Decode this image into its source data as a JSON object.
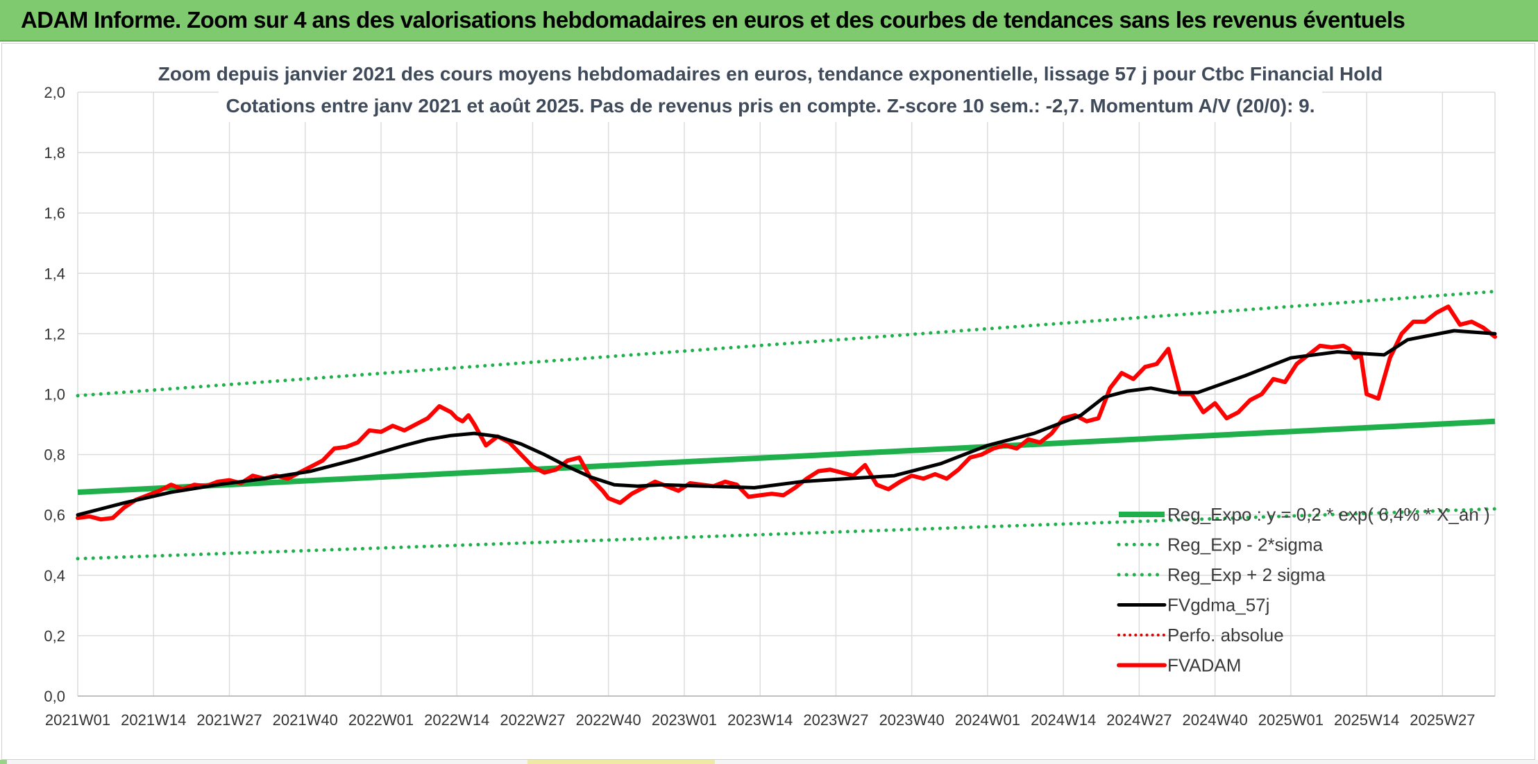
{
  "header": {
    "banner": "ADAM Informe. Zoom sur 4 ans des valorisations hebdomadaires en euros et des courbes de tendances sans les revenus éventuels"
  },
  "chart_data": {
    "type": "line",
    "title_line1": "Zoom depuis janvier 2021 des cours moyens hebdomadaires en euros, tendance exponentielle, lissage 57 j pour Ctbc Financial Hold",
    "title_line2": "Cotations entre janv 2021 et août 2025. Pas de revenus pris en compte. Z-score 10 sem.: -2,7. Momentum A/V (20/0): 9.",
    "ylim": [
      0,
      2
    ],
    "yticks": [
      0,
      0.2,
      0.4,
      0.6,
      0.8,
      1.0,
      1.2,
      1.4,
      1.6,
      1.8,
      2.0
    ],
    "ytick_labels": [
      "0,0",
      "0,2",
      "0,4",
      "0,6",
      "0,8",
      "1,0",
      "1,2",
      "1,4",
      "1,6",
      "1,8",
      "2,0"
    ],
    "x_range_weeks": [
      0,
      243
    ],
    "xtick_positions": [
      0,
      13,
      26,
      39,
      52,
      65,
      78,
      91,
      104,
      117,
      130,
      143,
      156,
      169,
      182,
      195,
      208,
      221,
      234
    ],
    "xtick_labels": [
      "2021W01",
      "2021W14",
      "2021W27",
      "2021W40",
      "2022W01",
      "2022W14",
      "2022W27",
      "2022W40",
      "2023W01",
      "2023W14",
      "2023W27",
      "2023W40",
      "2024W01",
      "2024W14",
      "2024W27",
      "2024W40",
      "2025W01",
      "2025W14",
      "2025W27"
    ],
    "grid": true,
    "legend_position": "bottom-right",
    "colors": {
      "reg_expo": "#1fb04b",
      "sigma": "#1fb04b",
      "fvgdma": "#000000",
      "perfo": "#e00000",
      "fvadam": "#ff0000",
      "grid": "#dcdcdc"
    },
    "series": [
      {
        "name": "Reg_Expo : y = 0,2 * exp( 6,4% * X_an )",
        "style": "solid-thick",
        "x": [
          0,
          243
        ],
        "values": [
          0.675,
          0.91
        ]
      },
      {
        "name": "Reg_Exp - 2*sigma",
        "style": "dotted",
        "x": [
          0,
          243
        ],
        "values": [
          0.455,
          0.62
        ]
      },
      {
        "name": "Reg_Exp + 2 sigma",
        "style": "dotted",
        "x": [
          0,
          243
        ],
        "values": [
          0.995,
          1.34
        ]
      },
      {
        "name": "FVgdma_57j",
        "style": "solid",
        "x": [
          0,
          8,
          16,
          24,
          32,
          40,
          48,
          56,
          60,
          64,
          68,
          72,
          76,
          80,
          84,
          88,
          92,
          96,
          100,
          108,
          116,
          124,
          132,
          140,
          148,
          156,
          164,
          172,
          176,
          180,
          184,
          188,
          192,
          200,
          208,
          216,
          220,
          224,
          228,
          236,
          243
        ],
        "values": [
          0.6,
          0.64,
          0.675,
          0.7,
          0.72,
          0.745,
          0.785,
          0.83,
          0.85,
          0.863,
          0.87,
          0.86,
          0.835,
          0.8,
          0.76,
          0.725,
          0.7,
          0.695,
          0.7,
          0.695,
          0.69,
          0.71,
          0.72,
          0.73,
          0.77,
          0.83,
          0.87,
          0.93,
          0.99,
          1.01,
          1.02,
          1.005,
          1.005,
          1.06,
          1.12,
          1.14,
          1.135,
          1.13,
          1.18,
          1.21,
          1.2
        ]
      },
      {
        "name": "Perfo. absolue",
        "style": "dotted",
        "x": [],
        "values": []
      },
      {
        "name": "FVADAM",
        "style": "solid-thick",
        "x": [
          0,
          2,
          4,
          6,
          8,
          10,
          12,
          14,
          16,
          18,
          20,
          22,
          24,
          26,
          28,
          30,
          32,
          34,
          36,
          38,
          40,
          42,
          44,
          46,
          48,
          50,
          52,
          54,
          56,
          58,
          60,
          62,
          64,
          65,
          66,
          67,
          68,
          70,
          72,
          74,
          76,
          78,
          80,
          82,
          84,
          86,
          88,
          90,
          91,
          93,
          95,
          97,
          99,
          101,
          103,
          105,
          107,
          109,
          111,
          113,
          115,
          117,
          119,
          121,
          123,
          125,
          127,
          129,
          131,
          133,
          135,
          137,
          139,
          141,
          143,
          145,
          147,
          149,
          151,
          153,
          155,
          157,
          159,
          161,
          163,
          165,
          167,
          169,
          171,
          173,
          175,
          177,
          179,
          181,
          183,
          185,
          187,
          189,
          191,
          193,
          195,
          197,
          199,
          201,
          203,
          205,
          207,
          209,
          211,
          213,
          215,
          217,
          218,
          219,
          220,
          221,
          223,
          225,
          227,
          229,
          231,
          233,
          235,
          237,
          239,
          241,
          243
        ],
        "values": [
          0.59,
          0.595,
          0.585,
          0.59,
          0.625,
          0.65,
          0.665,
          0.68,
          0.7,
          0.685,
          0.7,
          0.695,
          0.71,
          0.715,
          0.705,
          0.73,
          0.72,
          0.73,
          0.72,
          0.74,
          0.76,
          0.78,
          0.82,
          0.825,
          0.84,
          0.88,
          0.875,
          0.895,
          0.88,
          0.9,
          0.92,
          0.96,
          0.94,
          0.92,
          0.91,
          0.93,
          0.9,
          0.83,
          0.86,
          0.84,
          0.8,
          0.76,
          0.74,
          0.75,
          0.78,
          0.79,
          0.72,
          0.68,
          0.655,
          0.64,
          0.67,
          0.69,
          0.71,
          0.695,
          0.68,
          0.705,
          0.7,
          0.695,
          0.71,
          0.7,
          0.66,
          0.665,
          0.67,
          0.665,
          0.69,
          0.72,
          0.745,
          0.75,
          0.74,
          0.73,
          0.765,
          0.7,
          0.685,
          0.71,
          0.73,
          0.72,
          0.735,
          0.72,
          0.75,
          0.79,
          0.8,
          0.82,
          0.83,
          0.82,
          0.85,
          0.84,
          0.87,
          0.92,
          0.93,
          0.91,
          0.92,
          1.02,
          1.07,
          1.05,
          1.09,
          1.1,
          1.15,
          1.0,
          1.0,
          0.94,
          0.97,
          0.92,
          0.94,
          0.98,
          1.0,
          1.05,
          1.04,
          1.1,
          1.13,
          1.16,
          1.155,
          1.16,
          1.15,
          1.12,
          1.13,
          1.0,
          0.985,
          1.12,
          1.2,
          1.24,
          1.24,
          1.27,
          1.29,
          1.23,
          1.24,
          1.22,
          1.19
        ]
      }
    ]
  }
}
